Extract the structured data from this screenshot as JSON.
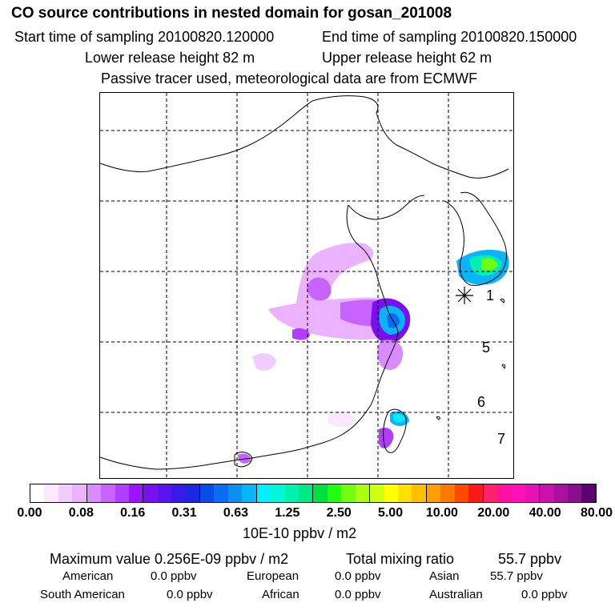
{
  "header": {
    "title": "CO  source contributions in nested domain for gosan_201008",
    "start_label": "Start time of sampling 20100820.120000",
    "end_label": "End time of sampling 20100820.150000",
    "lower_label": "Lower release height   82 m",
    "upper_label": "Upper release height   62 m",
    "tracer_note": "Passive tracer used, meteorological data are from ECMWF"
  },
  "map": {
    "receptor_marker": "asterisk-icon",
    "labels": [
      "1",
      "5",
      "6",
      "7"
    ]
  },
  "colorbar": {
    "ticks": [
      "0.00",
      "0.08",
      "0.16",
      "0.31",
      "0.63",
      "1.25",
      "2.50",
      "5.00",
      "10.00",
      "20.00",
      "40.00",
      "80.00"
    ],
    "unit": "10E-10 ppbv / m2",
    "colors": [
      "#ffffff",
      "#fbe8ff",
      "#f3ccff",
      "#eab2ff",
      "#d98cff",
      "#c764ff",
      "#b23cff",
      "#9a14ff",
      "#7a10f0",
      "#5a14f0",
      "#3a1ae8",
      "#1a28e0",
      "#0a4ce8",
      "#0a6cf0",
      "#0a90f0",
      "#0ab4f8",
      "#00f0ff",
      "#00f8d8",
      "#00f0b0",
      "#00e888",
      "#00e040",
      "#20ff10",
      "#70ff10",
      "#a8ff10",
      "#d0ff10",
      "#ffff00",
      "#ffe000",
      "#ffc000",
      "#ffa000",
      "#ff7800",
      "#ff4800",
      "#ff1818",
      "#ff2070",
      "#ff10a0",
      "#ff10b8",
      "#e810b8",
      "#cc10b0",
      "#aa10a0",
      "#881090",
      "#600070"
    ]
  },
  "stats": {
    "max_value": "Maximum value  0.256E-09 ppbv / m2",
    "total_mixing": "Total mixing ratio",
    "total_value": "55.7 ppbv",
    "american_label": "American",
    "american_value": "0.0 ppbv",
    "european_label": "European",
    "european_value": "0.0 ppbv",
    "asian_label": "Asian",
    "asian_value": "55.7 ppbv",
    "south_american_label": "South American",
    "south_american_value": "0.0 ppbv",
    "african_label": "African",
    "african_value": "0.0 ppbv",
    "australian_label": "Australian",
    "australian_value": "0.0 ppbv"
  }
}
